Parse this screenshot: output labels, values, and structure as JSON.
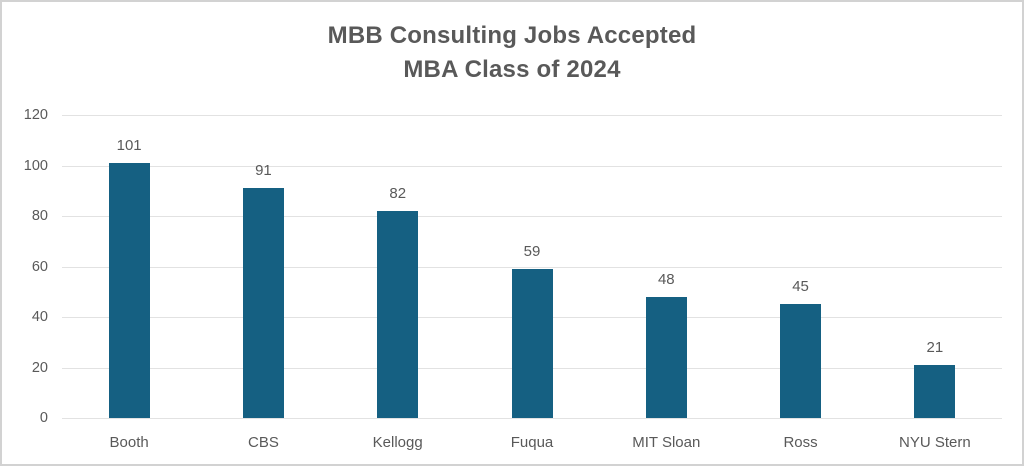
{
  "chart_data": {
    "type": "bar",
    "title": "MBB Consulting Jobs Accepted",
    "subtitle": "MBA Class of 2024",
    "categories": [
      "Booth",
      "CBS",
      "Kellogg",
      "Fuqua",
      "MIT Sloan",
      "Ross",
      "NYU Stern"
    ],
    "values": [
      101,
      91,
      82,
      59,
      48,
      45,
      21
    ],
    "yticks": [
      0,
      20,
      40,
      60,
      80,
      100,
      120
    ],
    "ylim": [
      0,
      120
    ],
    "xlabel": "",
    "ylabel": "",
    "grid": "horizontal",
    "legend": "none",
    "data_labels": "above-bars",
    "colors": {
      "bar": "#156082",
      "gridline": "#e2e2e2",
      "text": "#595959",
      "frame_border": "#d2d2d2",
      "background": "#ffffff"
    }
  }
}
